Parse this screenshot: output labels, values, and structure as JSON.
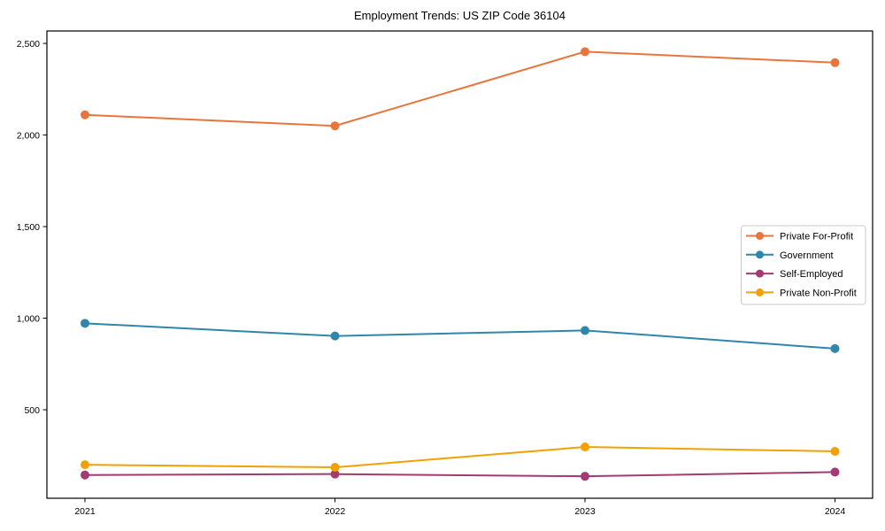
{
  "chart_data": {
    "type": "line",
    "title": "Employment Trends: US ZIP Code 36104",
    "x_labels": [
      "2021",
      "2022",
      "2023",
      "2024"
    ],
    "y_ticks": [
      500,
      1000,
      1500,
      2000,
      2500
    ],
    "y_tick_labels": [
      "500",
      "1,000",
      "1,500",
      "2,000",
      "2,500"
    ],
    "ylim": [
      17,
      2568
    ],
    "grid": false,
    "legend_position": "center-right",
    "frame_color": "#000000",
    "legend_border_color": "#c9c9c9",
    "series": [
      {
        "name": "Private For-Profit",
        "color": "#E8763C",
        "values": [
          2110,
          2050,
          2455,
          2395
        ]
      },
      {
        "name": "Government",
        "color": "#2E86AB",
        "values": [
          972,
          903,
          933,
          834
        ]
      },
      {
        "name": "Self-Employed",
        "color": "#A23B72",
        "values": [
          144,
          149,
          137,
          160
        ]
      },
      {
        "name": "Private Non-Profit",
        "color": "#F2A104",
        "values": [
          200,
          186,
          297,
          273
        ]
      }
    ]
  }
}
